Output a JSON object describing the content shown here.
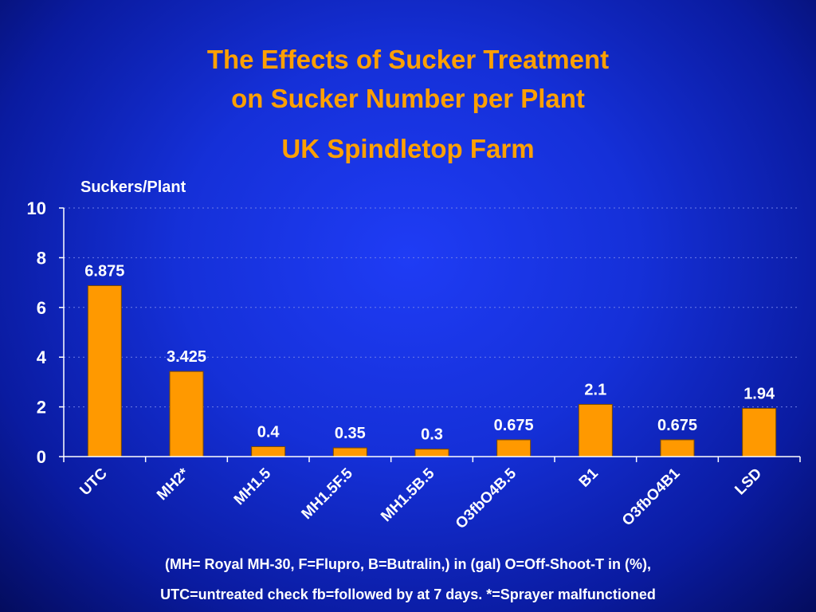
{
  "title_line1": "The Effects of Sucker Treatment",
  "title_line2": "on Sucker Number per Plant",
  "subtitle": "UK Spindletop Farm",
  "footnote_line1": "(MH= Royal MH-30, F=Flupro, B=Butralin,) in (gal) O=Off-Shoot-T in (%),",
  "footnote_line2": "UTC=untreated check fb=followed by at 7 days.  *=Sprayer malfunctioned",
  "chart_data": {
    "type": "bar",
    "title": "The Effects of Sucker Treatment on Sucker Number per Plant",
    "subtitle": "UK Spindletop Farm",
    "ylabel": "Suckers/Plant",
    "xlabel": "",
    "categories": [
      "UTC",
      "MH2*",
      "MH1.5",
      "MH1.5F.5",
      "MH1.5B.5",
      "O3fbO4B.5",
      "B1",
      "O3fbO4B1",
      "LSD"
    ],
    "values": [
      6.875,
      3.425,
      0.4,
      0.35,
      0.3,
      0.675,
      2.1,
      0.675,
      1.94
    ],
    "data_labels": [
      "6.875",
      "3.425",
      "0.4",
      "0.35",
      "0.3",
      "0.675",
      "2.1",
      "0.675",
      "1.94"
    ],
    "ylim": [
      0,
      10
    ],
    "yticks": [
      0,
      2,
      4,
      6,
      8,
      10
    ],
    "grid": true,
    "bar_color": "#ff9900",
    "legend": "none"
  }
}
